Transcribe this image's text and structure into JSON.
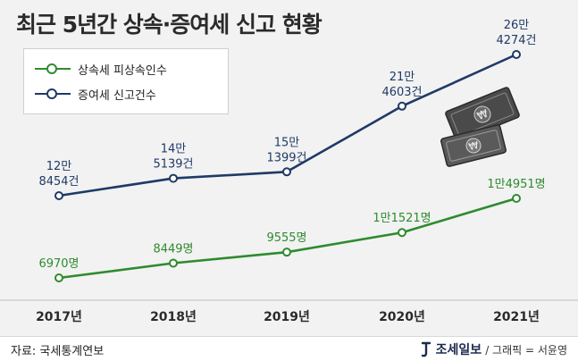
{
  "title": "최근 5년간 상속·증여세 신고 현황",
  "source": "자료: 국세통계연보",
  "brand": {
    "logo": "조세일보",
    "credit": "/ 그래픽 = 서윤영",
    "icon": "jose-ilbo-mark-icon"
  },
  "decoration": "korean-won-banknotes-icon",
  "colors": {
    "inheritance": "#2e8b2e",
    "gift": "#1f3a66",
    "background": "#f2f2f2"
  },
  "chart_data": {
    "type": "line",
    "title": "최근 5년간 상속·증여세 신고 현황",
    "categories": [
      "2017년",
      "2018년",
      "2019년",
      "2020년",
      "2021년"
    ],
    "legend_position": "top-left",
    "grid": false,
    "series": [
      {
        "name": "상속세 피상속인수",
        "color": "#2e8b2e",
        "values": [
          6970,
          8449,
          9555,
          11521,
          14951
        ],
        "labels": [
          [
            "6970명"
          ],
          [
            "8449명"
          ],
          [
            "9555명"
          ],
          [
            "1만1521명"
          ],
          [
            "1만4951명"
          ]
        ]
      },
      {
        "name": "증여세 신고건수",
        "color": "#1f3a66",
        "values": [
          128454,
          145139,
          151399,
          214603,
          264274
        ],
        "labels": [
          [
            "12만",
            "8454건"
          ],
          [
            "14만",
            "5139건"
          ],
          [
            "15만",
            "1399건"
          ],
          [
            "21만",
            "4603건"
          ],
          [
            "26만",
            "4274건"
          ]
        ]
      }
    ]
  }
}
